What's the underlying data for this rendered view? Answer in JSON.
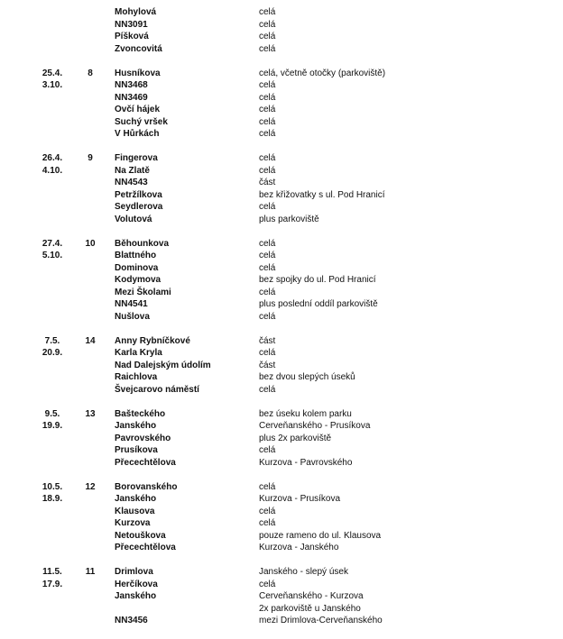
{
  "groups": [
    {
      "dates": [
        "",
        ""
      ],
      "number": "",
      "rows": [
        {
          "street": "Mohylová",
          "note": "celá"
        },
        {
          "street": "NN3091",
          "note": "celá"
        },
        {
          "street": "Píšková",
          "note": "celá"
        },
        {
          "street": "Zvoncovitá",
          "note": "celá"
        }
      ]
    },
    {
      "dates": [
        "25.4.",
        "3.10."
      ],
      "number": "8",
      "rows": [
        {
          "street": "Husníkova",
          "note": "celá, včetně otočky (parkoviště)"
        },
        {
          "street": "NN3468",
          "note": "celá"
        },
        {
          "street": "NN3469",
          "note": "celá"
        },
        {
          "street": "Ovčí hájek",
          "note": "celá"
        },
        {
          "street": "Suchý vršek",
          "note": "celá"
        },
        {
          "street": "V Hůrkách",
          "note": "celá"
        }
      ]
    },
    {
      "dates": [
        "26.4.",
        "4.10."
      ],
      "number": "9",
      "rows": [
        {
          "street": "Fingerova",
          "note": "celá"
        },
        {
          "street": "Na Zlatě",
          "note": "celá"
        },
        {
          "street": "NN4543",
          "note": "část"
        },
        {
          "street": "Petržílkova",
          "note": "bez křižovatky s ul. Pod Hranicí"
        },
        {
          "street": "Seydlerova",
          "note": "celá"
        },
        {
          "street": "Volutová",
          "note": "plus parkoviště"
        }
      ]
    },
    {
      "dates": [
        "27.4.",
        "5.10."
      ],
      "number": "10",
      "rows": [
        {
          "street": "Běhounkova",
          "note": "celá"
        },
        {
          "street": "Blattného",
          "note": "celá"
        },
        {
          "street": "Dominova",
          "note": "celá"
        },
        {
          "street": "Kodymova",
          "note": "bez spojky do ul. Pod Hranicí"
        },
        {
          "street": "Mezi Školami",
          "note": "celá"
        },
        {
          "street": "NN4541",
          "note": "plus poslední oddíl parkoviště"
        },
        {
          "street": "Nušlova",
          "note": "celá"
        }
      ]
    },
    {
      "dates": [
        "7.5.",
        "20.9."
      ],
      "number": "14",
      "rows": [
        {
          "street": "Anny Rybníčkové",
          "note": "část"
        },
        {
          "street": "Karla Kryla",
          "note": "celá"
        },
        {
          "street": "Nad Dalejským údolím",
          "note": "část"
        },
        {
          "street": "Raichlova",
          "note": "bez dvou slepých úseků"
        },
        {
          "street": "Švejcarovo náměstí",
          "note": "celá"
        }
      ]
    },
    {
      "dates": [
        "9.5.",
        "19.9."
      ],
      "number": "13",
      "rows": [
        {
          "street": "Bašteckého",
          "note": "bez úseku kolem parku"
        },
        {
          "street": "Janského",
          "note": "Cerveňanského - Prusíkova"
        },
        {
          "street": "Pavrovského",
          "note": "plus 2x parkoviště"
        },
        {
          "street": "Prusíkova",
          "note": "celá"
        },
        {
          "street": "Přecechtělova",
          "note": "Kurzova - Pavrovského"
        }
      ]
    },
    {
      "dates": [
        "10.5.",
        "18.9."
      ],
      "number": "12",
      "rows": [
        {
          "street": "Borovanského",
          "note": "celá"
        },
        {
          "street": "Janského",
          "note": "Kurzova - Prusíkova"
        },
        {
          "street": "Klausova",
          "note": "celá"
        },
        {
          "street": "Kurzova",
          "note": "celá"
        },
        {
          "street": "Netouškova",
          "note": "pouze rameno do ul. Klausova"
        },
        {
          "street": "Přecechtělova",
          "note": "Kurzova - Janského"
        }
      ]
    },
    {
      "dates": [
        "11.5.",
        "17.9."
      ],
      "number": "11",
      "rows": [
        {
          "street": "Drimlova",
          "note": "Janského - slepý úsek"
        },
        {
          "street": "Herčíkova",
          "note": "celá"
        },
        {
          "street": "Janského",
          "note": "Cerveňanského - Kurzova"
        },
        {
          "street": "",
          "note": "2x parkoviště u Janského"
        },
        {
          "street": "NN3456",
          "note": "mezi Drimlova-Cerveňanského"
        }
      ]
    }
  ]
}
